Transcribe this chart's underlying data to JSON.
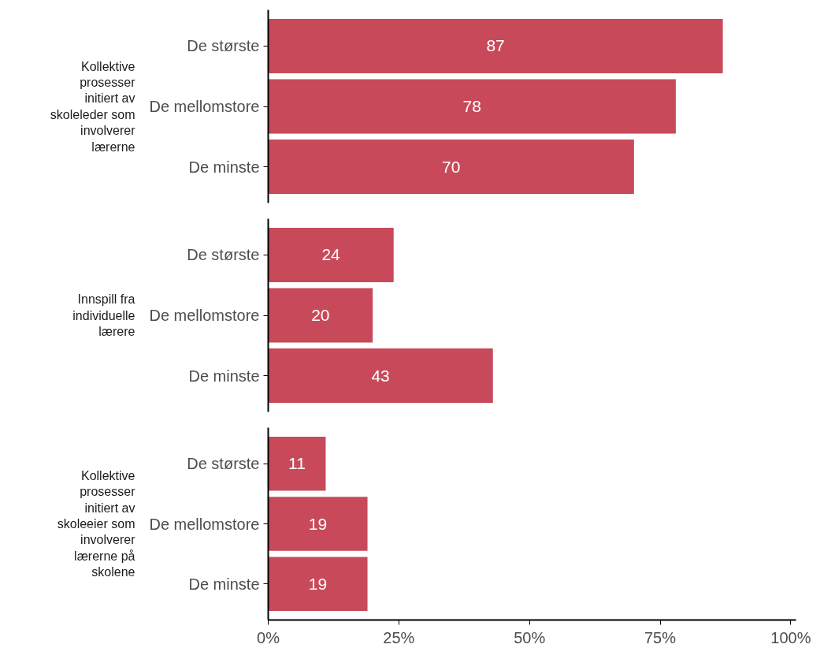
{
  "chart_data": [
    {
      "type": "bar",
      "orientation": "horizontal",
      "ylabel": "Kollektive prosesser initiert av skoleleder som involverer lærerne",
      "categories": [
        "De største",
        "De mellomstore",
        "De minste"
      ],
      "values": [
        87,
        78,
        70
      ],
      "color": "#c84a5a",
      "data_labels": true,
      "tick_labels": "y"
    },
    {
      "type": "bar",
      "orientation": "horizontal",
      "ylabel": "Innspill fra individuelle lærere",
      "categories": [
        "De største",
        "De mellomstore",
        "De minste"
      ],
      "values": [
        24,
        20,
        43
      ],
      "color": "#c84a5a",
      "data_labels": true,
      "tick_labels": "y"
    },
    {
      "type": "bar",
      "orientation": "horizontal",
      "ylabel": "Kollektive prosesser initiert av skoleeier som involverer lærerne på skolene",
      "categories": [
        "De største",
        "De mellomstore",
        "De minste"
      ],
      "values": [
        11,
        19,
        19
      ],
      "color": "#c84a5a",
      "data_labels": true,
      "xlim": [
        0,
        101
      ],
      "xticks": [
        {
          "value": 0,
          "label": "0%"
        },
        {
          "value": 25,
          "label": "25%"
        },
        {
          "value": 50,
          "label": "50%"
        },
        {
          "value": 75,
          "label": "75%"
        },
        {
          "value": 100,
          "label": "100%"
        }
      ]
    }
  ]
}
